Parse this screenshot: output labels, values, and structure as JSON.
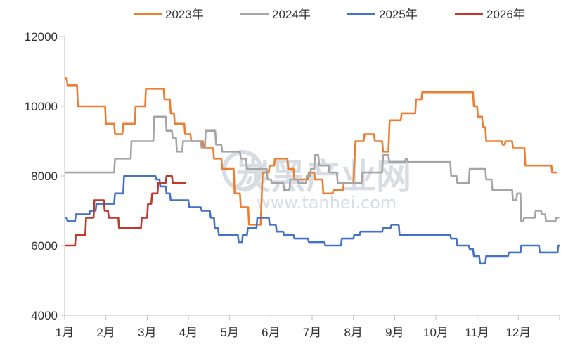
{
  "watermark": {
    "main": "炭黑产业网",
    "url": "www.tanhei.com"
  },
  "chart_data": {
    "type": "line",
    "title": "",
    "xlabel": "",
    "ylabel": "",
    "ylim": [
      4000,
      12000
    ],
    "y_ticks": [
      4000,
      6000,
      8000,
      10000,
      12000
    ],
    "x_domain": [
      1,
      13
    ],
    "x_unit": "month (fractional, 1 = start of 1月)",
    "categories": [
      "1月",
      "2月",
      "3月",
      "4月",
      "5月",
      "6月",
      "7月",
      "8月",
      "9月",
      "10月",
      "11月",
      "12月"
    ],
    "grid": false,
    "legend_position": "top",
    "series": [
      {
        "name": "2023年",
        "color": "#ED7D31",
        "points": [
          [
            1.0,
            10800
          ],
          [
            1.05,
            10800
          ],
          [
            1.07,
            10600
          ],
          [
            1.3,
            10600
          ],
          [
            1.32,
            10000
          ],
          [
            1.98,
            10000
          ],
          [
            2.0,
            9500
          ],
          [
            2.2,
            9500
          ],
          [
            2.22,
            9200
          ],
          [
            2.4,
            9200
          ],
          [
            2.42,
            9500
          ],
          [
            2.7,
            9500
          ],
          [
            2.72,
            10000
          ],
          [
            2.95,
            10000
          ],
          [
            2.97,
            10500
          ],
          [
            3.4,
            10500
          ],
          [
            3.42,
            10200
          ],
          [
            3.55,
            10200
          ],
          [
            3.57,
            9800
          ],
          [
            3.65,
            9800
          ],
          [
            3.67,
            9500
          ],
          [
            3.9,
            9500
          ],
          [
            3.92,
            9200
          ],
          [
            4.05,
            9200
          ],
          [
            4.07,
            9000
          ],
          [
            4.35,
            9000
          ],
          [
            4.37,
            8800
          ],
          [
            4.6,
            8800
          ],
          [
            4.62,
            8500
          ],
          [
            4.8,
            8500
          ],
          [
            4.82,
            8200
          ],
          [
            5.1,
            8200
          ],
          [
            5.12,
            7500
          ],
          [
            5.25,
            7500
          ],
          [
            5.27,
            7100
          ],
          [
            5.45,
            7100
          ],
          [
            5.47,
            6600
          ],
          [
            5.75,
            6600
          ],
          [
            5.8,
            8100
          ],
          [
            5.95,
            8100
          ],
          [
            5.97,
            8300
          ],
          [
            6.08,
            8300
          ],
          [
            6.1,
            8500
          ],
          [
            6.4,
            8500
          ],
          [
            6.42,
            8200
          ],
          [
            6.55,
            8200
          ],
          [
            6.57,
            7900
          ],
          [
            6.9,
            7900
          ],
          [
            6.92,
            8100
          ],
          [
            7.05,
            8100
          ],
          [
            7.07,
            7900
          ],
          [
            7.25,
            7900
          ],
          [
            7.27,
            7500
          ],
          [
            7.5,
            7500
          ],
          [
            7.52,
            7600
          ],
          [
            7.75,
            7600
          ],
          [
            7.77,
            7800
          ],
          [
            8.0,
            7800
          ],
          [
            8.05,
            9000
          ],
          [
            8.25,
            9000
          ],
          [
            8.27,
            9200
          ],
          [
            8.5,
            9200
          ],
          [
            8.52,
            9000
          ],
          [
            8.7,
            9000
          ],
          [
            8.72,
            8700
          ],
          [
            8.85,
            8700
          ],
          [
            8.88,
            9600
          ],
          [
            9.15,
            9600
          ],
          [
            9.17,
            9800
          ],
          [
            9.5,
            9800
          ],
          [
            9.52,
            10200
          ],
          [
            9.65,
            10200
          ],
          [
            9.67,
            10400
          ],
          [
            10.9,
            10400
          ],
          [
            10.92,
            10000
          ],
          [
            11.0,
            10000
          ],
          [
            11.02,
            9700
          ],
          [
            11.12,
            9700
          ],
          [
            11.14,
            9400
          ],
          [
            11.2,
            9400
          ],
          [
            11.22,
            9000
          ],
          [
            11.6,
            9000
          ],
          [
            11.62,
            8900
          ],
          [
            11.67,
            8900
          ],
          [
            11.69,
            9000
          ],
          [
            11.85,
            9000
          ],
          [
            11.87,
            8800
          ],
          [
            12.15,
            8800
          ],
          [
            12.17,
            8300
          ],
          [
            12.8,
            8300
          ],
          [
            12.82,
            8100
          ],
          [
            12.95,
            8100
          ]
        ]
      },
      {
        "name": "2024年",
        "color": "#A5A5A5",
        "points": [
          [
            1.0,
            8100
          ],
          [
            2.2,
            8100
          ],
          [
            2.22,
            8500
          ],
          [
            2.6,
            8500
          ],
          [
            2.62,
            9000
          ],
          [
            3.15,
            9000
          ],
          [
            3.17,
            9700
          ],
          [
            3.45,
            9700
          ],
          [
            3.47,
            9300
          ],
          [
            3.6,
            9300
          ],
          [
            3.62,
            9100
          ],
          [
            3.7,
            9100
          ],
          [
            3.72,
            8700
          ],
          [
            3.85,
            8700
          ],
          [
            3.87,
            9000
          ],
          [
            4.3,
            9000
          ],
          [
            4.32,
            8800
          ],
          [
            4.4,
            8800
          ],
          [
            4.42,
            9300
          ],
          [
            4.65,
            9300
          ],
          [
            4.67,
            8900
          ],
          [
            4.8,
            8900
          ],
          [
            4.82,
            8700
          ],
          [
            5.25,
            8700
          ],
          [
            5.27,
            8500
          ],
          [
            5.4,
            8500
          ],
          [
            5.42,
            8200
          ],
          [
            5.9,
            8200
          ],
          [
            5.92,
            7900
          ],
          [
            6.0,
            7900
          ],
          [
            6.02,
            7800
          ],
          [
            6.3,
            7800
          ],
          [
            6.32,
            7600
          ],
          [
            6.45,
            7600
          ],
          [
            6.47,
            7900
          ],
          [
            6.65,
            7900
          ],
          [
            6.67,
            7800
          ],
          [
            6.85,
            7800
          ],
          [
            6.87,
            8000
          ],
          [
            6.95,
            8000
          ],
          [
            6.97,
            8200
          ],
          [
            7.05,
            8200
          ],
          [
            7.07,
            8600
          ],
          [
            7.15,
            8600
          ],
          [
            7.17,
            8300
          ],
          [
            7.4,
            8300
          ],
          [
            7.42,
            8100
          ],
          [
            7.6,
            8100
          ],
          [
            7.62,
            7800
          ],
          [
            8.2,
            7800
          ],
          [
            8.22,
            8100
          ],
          [
            8.7,
            8100
          ],
          [
            8.72,
            8600
          ],
          [
            8.85,
            8600
          ],
          [
            8.87,
            8400
          ],
          [
            9.25,
            8400
          ],
          [
            9.27,
            8500
          ],
          [
            9.3,
            8500
          ],
          [
            9.32,
            8400
          ],
          [
            10.35,
            8400
          ],
          [
            10.37,
            8000
          ],
          [
            10.5,
            8000
          ],
          [
            10.52,
            7800
          ],
          [
            10.8,
            7800
          ],
          [
            10.82,
            8200
          ],
          [
            11.2,
            8200
          ],
          [
            11.22,
            7900
          ],
          [
            11.35,
            7900
          ],
          [
            11.37,
            7600
          ],
          [
            11.85,
            7600
          ],
          [
            11.87,
            7300
          ],
          [
            11.95,
            7300
          ],
          [
            11.97,
            7500
          ],
          [
            12.05,
            7500
          ],
          [
            12.07,
            6700
          ],
          [
            12.12,
            6700
          ],
          [
            12.14,
            6800
          ],
          [
            12.4,
            6800
          ],
          [
            12.42,
            7000
          ],
          [
            12.55,
            7000
          ],
          [
            12.57,
            6900
          ],
          [
            12.65,
            6900
          ],
          [
            12.67,
            6700
          ],
          [
            12.9,
            6700
          ],
          [
            12.92,
            6800
          ],
          [
            12.99,
            6800
          ]
        ]
      },
      {
        "name": "2025年",
        "color": "#4472C4",
        "points": [
          [
            1.0,
            6800
          ],
          [
            1.05,
            6800
          ],
          [
            1.07,
            6700
          ],
          [
            1.25,
            6700
          ],
          [
            1.27,
            6900
          ],
          [
            1.6,
            6900
          ],
          [
            1.62,
            7000
          ],
          [
            1.75,
            7000
          ],
          [
            1.77,
            7200
          ],
          [
            2.2,
            7200
          ],
          [
            2.22,
            7500
          ],
          [
            2.42,
            7500
          ],
          [
            2.44,
            8000
          ],
          [
            3.2,
            8000
          ],
          [
            3.22,
            7900
          ],
          [
            3.3,
            7900
          ],
          [
            3.32,
            7700
          ],
          [
            3.45,
            7700
          ],
          [
            3.47,
            7500
          ],
          [
            3.55,
            7500
          ],
          [
            3.57,
            7300
          ],
          [
            4.0,
            7300
          ],
          [
            4.02,
            7100
          ],
          [
            4.3,
            7100
          ],
          [
            4.32,
            7000
          ],
          [
            4.52,
            7000
          ],
          [
            4.54,
            6800
          ],
          [
            4.62,
            6800
          ],
          [
            4.64,
            6500
          ],
          [
            4.72,
            6500
          ],
          [
            4.74,
            6300
          ],
          [
            5.2,
            6300
          ],
          [
            5.22,
            6100
          ],
          [
            5.3,
            6100
          ],
          [
            5.32,
            6300
          ],
          [
            5.42,
            6300
          ],
          [
            5.44,
            6500
          ],
          [
            5.65,
            6500
          ],
          [
            5.67,
            6800
          ],
          [
            5.95,
            6800
          ],
          [
            5.97,
            6600
          ],
          [
            6.12,
            6600
          ],
          [
            6.14,
            6400
          ],
          [
            6.3,
            6400
          ],
          [
            6.32,
            6300
          ],
          [
            6.55,
            6300
          ],
          [
            6.57,
            6200
          ],
          [
            6.9,
            6200
          ],
          [
            6.92,
            6100
          ],
          [
            7.3,
            6100
          ],
          [
            7.32,
            6000
          ],
          [
            7.7,
            6000
          ],
          [
            7.72,
            6200
          ],
          [
            8.0,
            6200
          ],
          [
            8.02,
            6300
          ],
          [
            8.15,
            6300
          ],
          [
            8.17,
            6400
          ],
          [
            8.7,
            6400
          ],
          [
            8.72,
            6500
          ],
          [
            8.9,
            6500
          ],
          [
            8.92,
            6600
          ],
          [
            9.1,
            6600
          ],
          [
            9.12,
            6300
          ],
          [
            10.35,
            6300
          ],
          [
            10.37,
            6200
          ],
          [
            10.5,
            6200
          ],
          [
            10.52,
            6000
          ],
          [
            10.8,
            6000
          ],
          [
            10.82,
            5900
          ],
          [
            10.9,
            5900
          ],
          [
            10.92,
            5700
          ],
          [
            11.05,
            5700
          ],
          [
            11.07,
            5500
          ],
          [
            11.2,
            5500
          ],
          [
            11.22,
            5700
          ],
          [
            11.75,
            5700
          ],
          [
            11.77,
            5800
          ],
          [
            12.05,
            5800
          ],
          [
            12.07,
            6000
          ],
          [
            12.5,
            6000
          ],
          [
            12.52,
            5800
          ],
          [
            12.95,
            5800
          ],
          [
            12.97,
            6000
          ],
          [
            13.0,
            6000
          ]
        ]
      },
      {
        "name": "2026年",
        "color": "#C0392B",
        "points": [
          [
            1.0,
            6000
          ],
          [
            1.25,
            6000
          ],
          [
            1.27,
            6300
          ],
          [
            1.5,
            6300
          ],
          [
            1.52,
            6800
          ],
          [
            1.7,
            6800
          ],
          [
            1.72,
            7300
          ],
          [
            1.95,
            7300
          ],
          [
            1.97,
            7000
          ],
          [
            2.05,
            7000
          ],
          [
            2.07,
            6800
          ],
          [
            2.3,
            6800
          ],
          [
            2.32,
            6500
          ],
          [
            2.85,
            6500
          ],
          [
            2.87,
            6800
          ],
          [
            3.0,
            6800
          ],
          [
            3.02,
            7200
          ],
          [
            3.1,
            7200
          ],
          [
            3.12,
            7500
          ],
          [
            3.25,
            7500
          ],
          [
            3.27,
            7800
          ],
          [
            3.45,
            7800
          ],
          [
            3.47,
            8000
          ],
          [
            3.6,
            8000
          ],
          [
            3.62,
            7800
          ],
          [
            3.95,
            7800
          ]
        ]
      }
    ]
  }
}
